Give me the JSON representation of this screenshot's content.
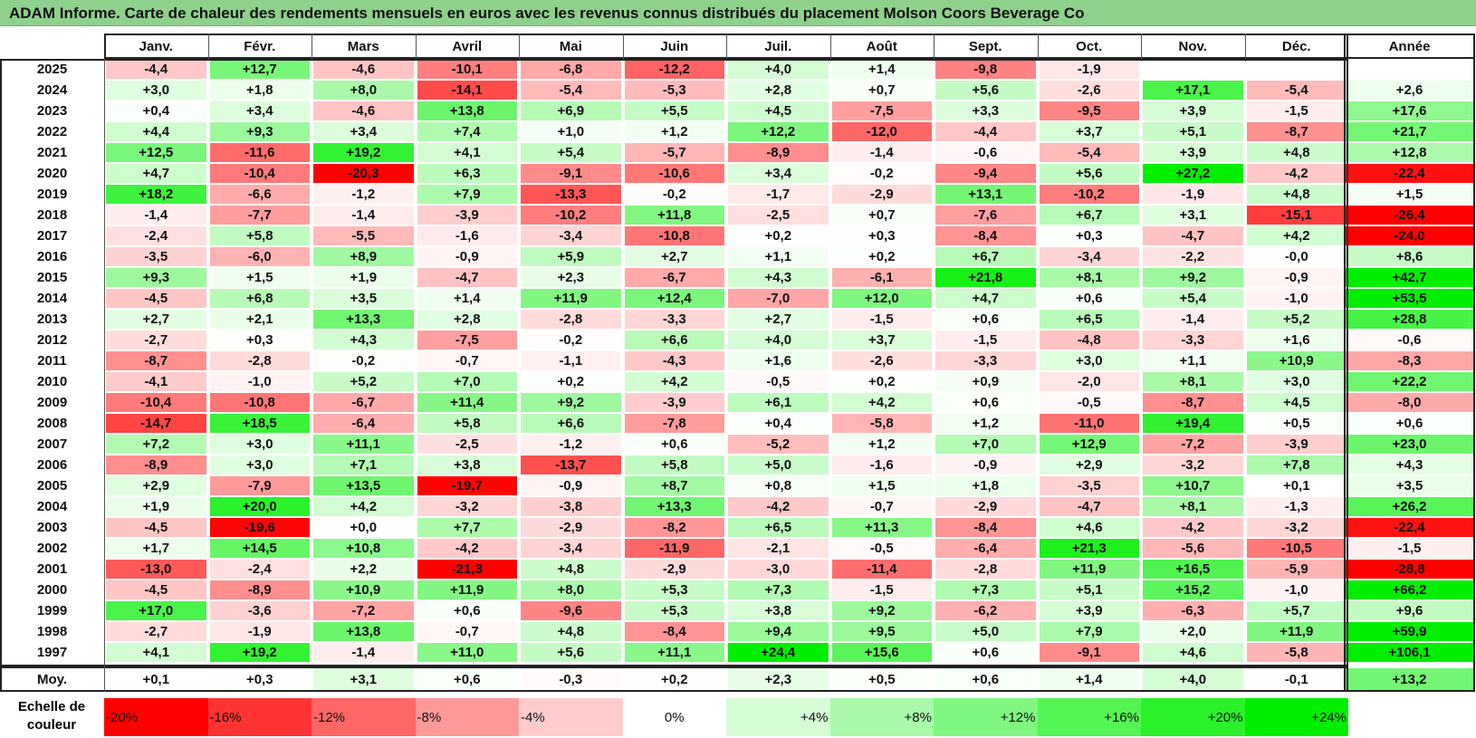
{
  "title": "ADAM Informe. Carte de chaleur des rendements mensuels en euros avec les revenus connus distribués du placement Molson Coors Beverage Co",
  "chart_data": {
    "type": "heatmap",
    "columns": [
      "Janv.",
      "Févr.",
      "Mars",
      "Avril",
      "Mai",
      "Juin",
      "Juil.",
      "Août",
      "Sept.",
      "Oct.",
      "Nov.",
      "Déc."
    ],
    "year_column": "Année",
    "rows": [
      {
        "year": "2025",
        "values": [
          "-4,4",
          "+12,7",
          "-4,6",
          "-10,1",
          "-6,8",
          "-12,2",
          "+4,0",
          "+1,4",
          "-9,8",
          "-1,9",
          "",
          ""
        ],
        "annual": ""
      },
      {
        "year": "2024",
        "values": [
          "+3,0",
          "+1,8",
          "+8,0",
          "-14,1",
          "-5,4",
          "-5,3",
          "+2,8",
          "+0,7",
          "+5,6",
          "-2,6",
          "+17,1",
          "-5,4"
        ],
        "annual": "+2,6"
      },
      {
        "year": "2023",
        "values": [
          "+0,4",
          "+3,4",
          "-4,6",
          "+13,8",
          "+6,9",
          "+5,5",
          "+4,5",
          "-7,5",
          "+3,3",
          "-9,5",
          "+3,9",
          "-1,5"
        ],
        "annual": "+17,6"
      },
      {
        "year": "2022",
        "values": [
          "+4,4",
          "+9,3",
          "+3,4",
          "+7,4",
          "+1,0",
          "+1,2",
          "+12,2",
          "-12,0",
          "-4,4",
          "+3,7",
          "+5,1",
          "-8,7"
        ],
        "annual": "+21,7"
      },
      {
        "year": "2021",
        "values": [
          "+12,5",
          "-11,6",
          "+19,2",
          "+4,1",
          "+5,4",
          "-5,7",
          "-8,9",
          "-1,4",
          "-0,6",
          "-5,4",
          "+3,9",
          "+4,8"
        ],
        "annual": "+12,8"
      },
      {
        "year": "2020",
        "values": [
          "+4,7",
          "-10,4",
          "-20,3",
          "+6,3",
          "-9,1",
          "-10,6",
          "+3,4",
          "-0,2",
          "-9,4",
          "+5,6",
          "+27,2",
          "-4,2"
        ],
        "annual": "-22,4"
      },
      {
        "year": "2019",
        "values": [
          "+18,2",
          "-6,6",
          "-1,2",
          "+7,9",
          "-13,3",
          "-0,2",
          "-1,7",
          "-2,9",
          "+13,1",
          "-10,2",
          "-1,9",
          "+4,8"
        ],
        "annual": "+1,5"
      },
      {
        "year": "2018",
        "values": [
          "-1,4",
          "-7,7",
          "-1,4",
          "-3,9",
          "-10,2",
          "+11,8",
          "-2,5",
          "+0,7",
          "-7,6",
          "+6,7",
          "+3,1",
          "-15,1"
        ],
        "annual": "-26,4"
      },
      {
        "year": "2017",
        "values": [
          "-2,4",
          "+5,8",
          "-5,5",
          "-1,6",
          "-3,4",
          "-10,8",
          "+0,2",
          "+0,3",
          "-8,4",
          "+0,3",
          "-4,7",
          "+4,2"
        ],
        "annual": "-24,0"
      },
      {
        "year": "2016",
        "values": [
          "-3,5",
          "-6,0",
          "+8,9",
          "-0,9",
          "+5,9",
          "+2,7",
          "+1,1",
          "+0,2",
          "+6,7",
          "-3,4",
          "-2,2",
          "-0,0"
        ],
        "annual": "+8,6"
      },
      {
        "year": "2015",
        "values": [
          "+9,3",
          "+1,5",
          "+1,9",
          "-4,7",
          "+2,3",
          "-6,7",
          "+4,3",
          "-6,1",
          "+21,8",
          "+8,1",
          "+9,2",
          "-0,9"
        ],
        "annual": "+42,7"
      },
      {
        "year": "2014",
        "values": [
          "-4,5",
          "+6,8",
          "+3,5",
          "+1,4",
          "+11,9",
          "+12,4",
          "-7,0",
          "+12,0",
          "+4,7",
          "+0,6",
          "+5,4",
          "-1,0"
        ],
        "annual": "+53,5"
      },
      {
        "year": "2013",
        "values": [
          "+2,7",
          "+2,1",
          "+13,3",
          "+2,8",
          "-2,8",
          "-3,3",
          "+2,7",
          "-1,5",
          "+0,6",
          "+6,5",
          "-1,4",
          "+5,2"
        ],
        "annual": "+28,8"
      },
      {
        "year": "2012",
        "values": [
          "-2,7",
          "+0,3",
          "+4,3",
          "-7,5",
          "-0,2",
          "+6,6",
          "+4,0",
          "+3,7",
          "-1,5",
          "-4,8",
          "-3,3",
          "+1,6"
        ],
        "annual": "-0,6"
      },
      {
        "year": "2011",
        "values": [
          "-8,7",
          "-2,8",
          "-0,2",
          "-0,7",
          "-1,1",
          "-4,3",
          "+1,6",
          "-2,6",
          "-3,3",
          "+3,0",
          "+1,1",
          "+10,9"
        ],
        "annual": "-8,3"
      },
      {
        "year": "2010",
        "values": [
          "-4,1",
          "-1,0",
          "+5,2",
          "+7,0",
          "+0,2",
          "+4,2",
          "-0,5",
          "+0,2",
          "+0,9",
          "-2,0",
          "+8,1",
          "+3,0"
        ],
        "annual": "+22,2"
      },
      {
        "year": "2009",
        "values": [
          "-10,4",
          "-10,8",
          "-6,7",
          "+11,4",
          "+9,2",
          "-3,9",
          "+6,1",
          "+4,2",
          "+0,6",
          "-0,5",
          "-8,7",
          "+4,5"
        ],
        "annual": "-8,0"
      },
      {
        "year": "2008",
        "values": [
          "-14,7",
          "+18,5",
          "-6,4",
          "+5,8",
          "+6,6",
          "-7,8",
          "+0,4",
          "-5,8",
          "+1,2",
          "-11,0",
          "+19,4",
          "+0,5"
        ],
        "annual": "+0,6"
      },
      {
        "year": "2007",
        "values": [
          "+7,2",
          "+3,0",
          "+11,1",
          "-2,5",
          "-1,2",
          "+0,6",
          "-5,2",
          "+1,2",
          "+7,0",
          "+12,9",
          "-7,2",
          "-3,9"
        ],
        "annual": "+23,0"
      },
      {
        "year": "2006",
        "values": [
          "-8,9",
          "+3,0",
          "+7,1",
          "+3,8",
          "-13,7",
          "+5,8",
          "+5,0",
          "-1,6",
          "-0,9",
          "+2,9",
          "-3,2",
          "+7,8"
        ],
        "annual": "+4,3"
      },
      {
        "year": "2005",
        "values": [
          "+2,9",
          "-7,9",
          "+13,5",
          "-19,7",
          "-0,9",
          "+8,7",
          "+0,8",
          "+1,5",
          "+1,8",
          "-3,5",
          "+10,7",
          "+0,1"
        ],
        "annual": "+3,5"
      },
      {
        "year": "2004",
        "values": [
          "+1,9",
          "+20,0",
          "+4,2",
          "-3,2",
          "-3,8",
          "+13,3",
          "-4,2",
          "-0,7",
          "-2,9",
          "-4,7",
          "+8,1",
          "-1,3"
        ],
        "annual": "+26,2"
      },
      {
        "year": "2003",
        "values": [
          "-4,5",
          "-19,6",
          "+0,0",
          "+7,7",
          "-2,9",
          "-8,2",
          "+6,5",
          "+11,3",
          "-8,4",
          "+4,6",
          "-4,2",
          "-3,2"
        ],
        "annual": "-22,4"
      },
      {
        "year": "2002",
        "values": [
          "+1,7",
          "+14,5",
          "+10,8",
          "-4,2",
          "-3,4",
          "-11,9",
          "-2,1",
          "-0,5",
          "-6,4",
          "+21,3",
          "-5,6",
          "-10,5"
        ],
        "annual": "-1,5"
      },
      {
        "year": "2001",
        "values": [
          "-13,0",
          "-2,4",
          "+2,2",
          "-21,3",
          "+4,8",
          "-2,9",
          "-3,0",
          "-11,4",
          "-2,8",
          "+11,9",
          "+16,5",
          "-5,9"
        ],
        "annual": "-28,8"
      },
      {
        "year": "2000",
        "values": [
          "-4,5",
          "-8,9",
          "+10,9",
          "+11,9",
          "+8,0",
          "+5,3",
          "+7,3",
          "-1,5",
          "+7,3",
          "+5,1",
          "+15,2",
          "-1,0"
        ],
        "annual": "+66,2"
      },
      {
        "year": "1999",
        "values": [
          "+17,0",
          "-3,6",
          "-7,2",
          "+0,6",
          "-9,6",
          "+5,3",
          "+3,8",
          "+9,2",
          "-6,2",
          "+3,9",
          "-6,3",
          "+5,7"
        ],
        "annual": "+9,6"
      },
      {
        "year": "1998",
        "values": [
          "-2,7",
          "-1,9",
          "+13,8",
          "-0,7",
          "+4,8",
          "-8,4",
          "+9,4",
          "+9,5",
          "+5,0",
          "+7,9",
          "+2,0",
          "+11,9"
        ],
        "annual": "+59,9"
      },
      {
        "year": "1997",
        "values": [
          "+4,1",
          "+19,2",
          "-1,4",
          "+11,0",
          "+5,6",
          "+11,1",
          "+24,4",
          "+15,6",
          "+0,6",
          "-9,1",
          "+4,6",
          "-5,8"
        ],
        "annual": "+106,1"
      }
    ],
    "average": {
      "label": "Moy.",
      "values": [
        "+0,1",
        "+0,3",
        "+3,1",
        "+0,6",
        "-0,3",
        "+0,2",
        "+2,3",
        "+0,5",
        "+0,6",
        "+1,4",
        "+4,0",
        "-0,1"
      ],
      "annual": "+13,2"
    },
    "legend": {
      "label": "Echelle de couleur",
      "items": [
        {
          "text": "-20%",
          "value": -20,
          "align": "left"
        },
        {
          "text": "-16%",
          "value": -16,
          "align": "left"
        },
        {
          "text": "-12%",
          "value": -12,
          "align": "left"
        },
        {
          "text": "-8%",
          "value": -8,
          "align": "left"
        },
        {
          "text": "-4%",
          "value": -4,
          "align": "left"
        },
        {
          "text": "0%",
          "value": 0,
          "align": "center"
        },
        {
          "text": "+4%",
          "value": 4,
          "align": "right"
        },
        {
          "text": "+8%",
          "value": 8,
          "align": "right"
        },
        {
          "text": "+12%",
          "value": 12,
          "align": "right"
        },
        {
          "text": "+16%",
          "value": 16,
          "align": "right"
        },
        {
          "text": "+20%",
          "value": 20,
          "align": "right"
        },
        {
          "text": "+24%",
          "value": 24,
          "align": "right"
        }
      ]
    },
    "colors": {
      "negative_max": "#ff0000",
      "zero": "#ffffff",
      "positive_max": "#00ee00"
    }
  }
}
